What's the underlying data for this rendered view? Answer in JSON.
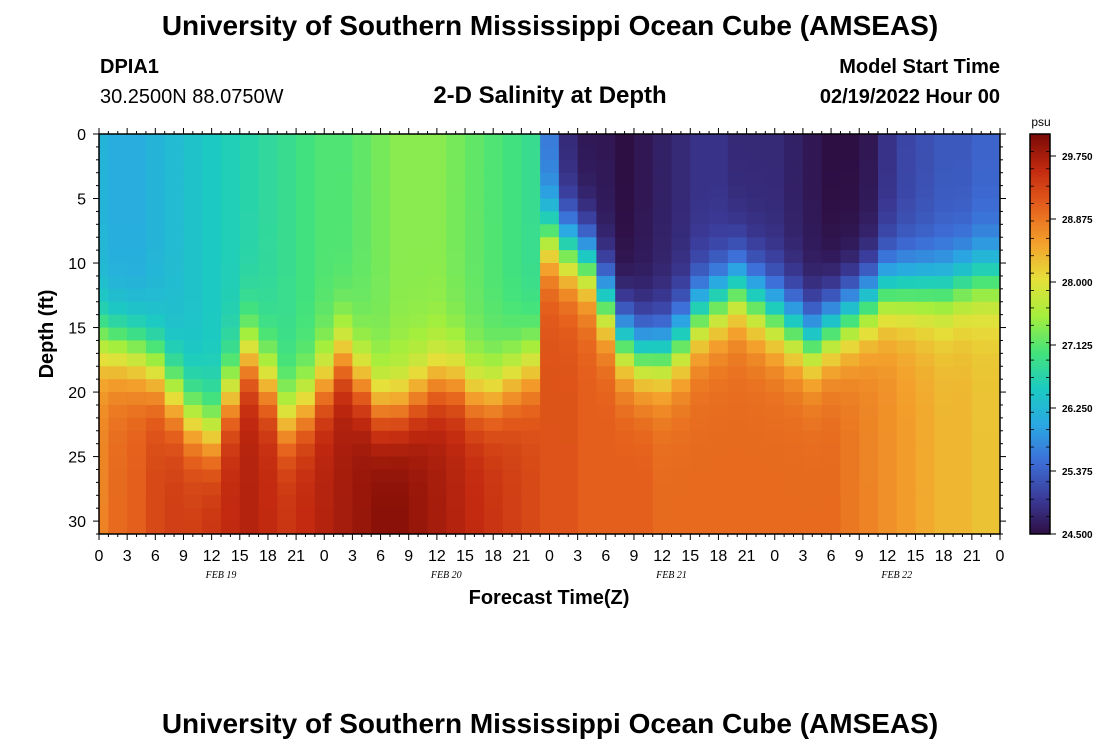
{
  "header": {
    "title": "University of Southern Mississippi Ocean Cube (AMSEAS)",
    "station_id": "DPIA1",
    "coordinates": "30.2500N  88.0750W",
    "subtitle": "2-D Salinity at Depth",
    "model_start_label": "Model Start Time",
    "model_start_value": "02/19/2022 Hour 00"
  },
  "footer": {
    "title": "University of Southern Mississippi Ocean Cube (AMSEAS)"
  },
  "chart_data": {
    "type": "heatmap",
    "title": "2-D Salinity at Depth",
    "xlabel": "Forecast Time(Z)",
    "ylabel": "Depth (ft)",
    "x_tick_labels": [
      "0",
      "3",
      "6",
      "9",
      "12",
      "15",
      "18",
      "21",
      "0",
      "3",
      "6",
      "9",
      "12",
      "15",
      "18",
      "21",
      "0",
      "3",
      "6",
      "9",
      "12",
      "15",
      "18",
      "21",
      "0",
      "3",
      "6",
      "9",
      "12",
      "15",
      "18",
      "21",
      "0"
    ],
    "day_labels": [
      {
        "text": "FEB 19",
        "at_hour": 13
      },
      {
        "text": "FEB 20",
        "at_hour": 37
      },
      {
        "text": "FEB 21",
        "at_hour": 61
      },
      {
        "text": "FEB 22",
        "at_hour": 85
      }
    ],
    "xlim": [
      0,
      96
    ],
    "y_ticks": [
      0,
      5,
      10,
      15,
      20,
      25,
      30
    ],
    "ylim": [
      0,
      31
    ],
    "colorbar": {
      "unit": "psu",
      "range": [
        24.5,
        30.1
      ],
      "tick_labels": [
        "29.750",
        "28.875",
        "28.000",
        "27.125",
        "26.250",
        "25.375",
        "24.500"
      ],
      "colors": [
        "#2e0f44",
        "#3b3c9a",
        "#3d6fd8",
        "#2aa8e3",
        "#1ccbc1",
        "#45e37a",
        "#a6ee3c",
        "#e5e03a",
        "#f3a02c",
        "#e5601c",
        "#c32a10",
        "#7a0a06"
      ]
    },
    "columns_hours": [
      0,
      2,
      4,
      6,
      8,
      10,
      12,
      14,
      16,
      18,
      20,
      22,
      24,
      26,
      28,
      30,
      32,
      34,
      36,
      38,
      40,
      42,
      44,
      46,
      48,
      50,
      52,
      54,
      56,
      58,
      60,
      62,
      64,
      66,
      68,
      70,
      72,
      74,
      76,
      78,
      80,
      82,
      84,
      86,
      88,
      90,
      92,
      94,
      96
    ],
    "surface_salinity": [
      26.2,
      26.1,
      26.1,
      26.2,
      26.3,
      26.4,
      26.5,
      26.6,
      26.7,
      26.8,
      26.9,
      27.0,
      27.1,
      27.1,
      27.2,
      27.3,
      27.4,
      27.4,
      27.4,
      27.3,
      27.2,
      27.1,
      27.0,
      26.9,
      25.6,
      24.8,
      24.6,
      24.6,
      24.5,
      24.6,
      24.7,
      24.8,
      24.9,
      24.9,
      24.8,
      24.8,
      24.8,
      24.7,
      24.6,
      24.5,
      24.5,
      24.6,
      24.9,
      25.1,
      25.2,
      25.3,
      25.3,
      25.4,
      25.4
    ],
    "halocline_depth_ft": [
      16,
      16.5,
      17,
      18,
      20,
      22,
      23,
      20,
      17,
      19,
      22,
      21,
      19,
      17,
      19,
      21,
      21,
      20,
      19,
      19,
      20,
      20,
      19,
      18,
      8,
      9,
      10,
      13,
      16,
      17,
      17,
      16,
      14,
      13,
      12,
      13,
      14,
      15,
      16,
      15,
      14,
      13,
      12,
      12,
      12,
      12,
      11.5,
      11,
      11
    ],
    "deep_salinity": [
      28.8,
      29.0,
      29.1,
      29.3,
      29.4,
      29.4,
      29.5,
      29.6,
      29.7,
      29.6,
      29.5,
      29.6,
      29.7,
      29.8,
      29.9,
      30.0,
      30.0,
      29.9,
      29.8,
      29.7,
      29.6,
      29.5,
      29.4,
      29.3,
      29.2,
      29.2,
      29.1,
      29.1,
      29.1,
      29.1,
      29.0,
      29.0,
      29.0,
      29.0,
      29.0,
      29.0,
      29.0,
      29.0,
      29.0,
      29.0,
      28.9,
      28.8,
      28.7,
      28.6,
      28.5,
      28.4,
      28.4,
      28.3,
      28.3
    ]
  }
}
